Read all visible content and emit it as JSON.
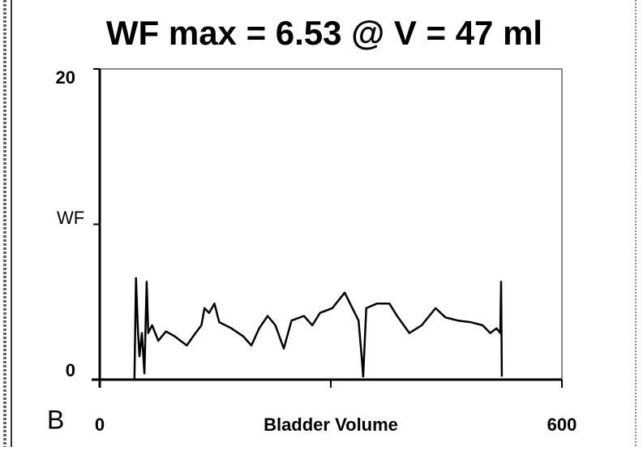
{
  "chart_data": {
    "type": "line",
    "title": "WF max = 6.53 @ V = 47 ml",
    "y_label": "WF",
    "x_label": "Bladder Volume",
    "panel_label": "B",
    "xlim": [
      0,
      600
    ],
    "ylim": [
      0,
      20
    ],
    "xticks": [
      0,
      600
    ],
    "yticks": [
      0,
      20
    ],
    "x_minor_ticks": [
      300
    ],
    "y_minor_ticks": [
      10
    ],
    "series": [
      {
        "color": "#000000",
        "x": [
          45,
          47,
          49.5,
          51.6,
          54.7,
          58,
          61,
          63,
          68,
          76,
          86,
          97,
          113,
          123,
          132,
          136,
          142,
          149,
          155,
          171,
          186,
          197,
          207,
          218,
          228,
          239,
          249,
          265,
          276,
          286,
          302,
          318,
          328,
          336,
          340,
          342,
          346,
          360,
          376,
          386,
          402,
          418,
          436,
          449,
          465,
          481,
          497,
          507,
          515,
          520,
          521,
          522
        ],
        "values": [
          0,
          6.53,
          3.3,
          1.5,
          3.0,
          0.4,
          6.3,
          3.0,
          3.5,
          2.5,
          3.1,
          2.8,
          2.2,
          2.9,
          3.5,
          4.6,
          4.3,
          4.9,
          3.7,
          3.3,
          2.8,
          2.2,
          3.3,
          4.1,
          3.5,
          2.0,
          3.8,
          4.1,
          3.5,
          4.3,
          4.6,
          5.6,
          4.6,
          3.8,
          1.5,
          0.2,
          4.6,
          4.9,
          4.9,
          4.1,
          3.0,
          3.5,
          4.6,
          4.0,
          3.8,
          3.7,
          3.5,
          3.0,
          3.3,
          3.0,
          6.3,
          0.2
        ]
      }
    ]
  }
}
